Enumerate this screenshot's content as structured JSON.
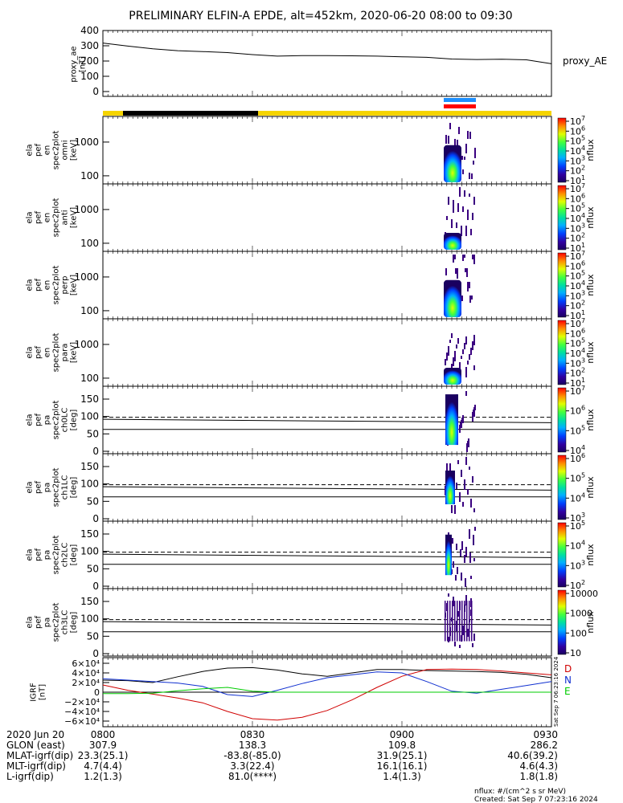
{
  "title": "PRELIMINARY ELFIN-A EPDE, alt=452km, 2020-06-20 08:00 to 09:30",
  "colors": {
    "bar_yellow": "#f5d400",
    "bar_black": "#000000",
    "marker_blue": "#1e90ff",
    "marker_red": "#ff0000",
    "field_black": "#000000",
    "field_red": "#d00000",
    "field_blue": "#1030d0",
    "field_green": "#00cc00"
  },
  "chart_data": [
    {
      "type": "line",
      "panel": "proxy_ae",
      "ylabel": "proxy_ae\n[nT]",
      "legend": "proxy_AE",
      "ylim": [
        0,
        400
      ],
      "yticks": [
        "0",
        "100",
        "200",
        "300",
        "400"
      ],
      "x_minutes": [
        0,
        5,
        10,
        15,
        20,
        25,
        30,
        35,
        40,
        45,
        50,
        55,
        60,
        65,
        70,
        75,
        80,
        85,
        90
      ],
      "values": [
        318,
        298,
        280,
        268,
        262,
        255,
        242,
        232,
        235,
        236,
        234,
        232,
        228,
        224,
        213,
        210,
        212,
        208,
        182
      ]
    },
    {
      "type": "heatmap",
      "panel": "spec_omni",
      "ylabel": "ela\npef\nen\nspec2plot\nomni\n[keV]",
      "yticks": [
        "100",
        "1000"
      ],
      "colorbar_label": "nflux",
      "colorbar_ticks": [
        "101",
        "102",
        "103",
        "104",
        "105",
        "106",
        "107"
      ]
    },
    {
      "type": "heatmap",
      "panel": "spec_anti",
      "ylabel": "ela\npef\nen\nspec2plot\nanti\n[keV]",
      "yticks": [
        "100",
        "1000"
      ],
      "colorbar_label": "nflux",
      "colorbar_ticks": [
        "101",
        "102",
        "103",
        "104",
        "105",
        "106",
        "107"
      ]
    },
    {
      "type": "heatmap",
      "panel": "spec_perp",
      "ylabel": "ela\npef\nen\nspec2plot\nperp\n[keV]",
      "yticks": [
        "100",
        "1000"
      ],
      "colorbar_label": "nflux",
      "colorbar_ticks": [
        "101",
        "102",
        "103",
        "104",
        "105",
        "106",
        "107"
      ]
    },
    {
      "type": "heatmap",
      "panel": "spec_para",
      "ylabel": "ela\npef\nen\nspec2plot\npara\n[keV]",
      "yticks": [
        "100",
        "1000"
      ],
      "colorbar_label": "nflux",
      "colorbar_ticks": [
        "101",
        "102",
        "103",
        "104",
        "105",
        "106",
        "107"
      ]
    },
    {
      "type": "heatmap",
      "panel": "pa_ch0",
      "ylabel": "ela\npef\npa\nspec2plot\nch0LC\n[deg]",
      "yticks": [
        "0",
        "50",
        "100",
        "150"
      ],
      "colorbar_label": "nflux",
      "colorbar_ticks": [
        "104",
        "105",
        "106",
        "107"
      ]
    },
    {
      "type": "heatmap",
      "panel": "pa_ch1",
      "ylabel": "ela\npef\npa\nspec2plot\nch1LC\n[deg]",
      "yticks": [
        "0",
        "50",
        "100",
        "150"
      ],
      "colorbar_label": "nflux",
      "colorbar_ticks": [
        "103",
        "104",
        "105",
        "106"
      ]
    },
    {
      "type": "heatmap",
      "panel": "pa_ch2",
      "ylabel": "ela\npef\npa\nspec2plot\nch2LC\n[deg]",
      "yticks": [
        "0",
        "50",
        "100",
        "150"
      ],
      "colorbar_label": "nflux",
      "colorbar_ticks": [
        "102",
        "103",
        "104",
        "105"
      ]
    },
    {
      "type": "heatmap",
      "panel": "pa_ch3",
      "ylabel": "ela\npef\npa\nspec2plot\nch3LC\n[deg]",
      "yticks": [
        "0",
        "50",
        "100",
        "150"
      ],
      "colorbar_label": "nflux",
      "colorbar_ticks": [
        "10",
        "100",
        "1000",
        "10000"
      ]
    },
    {
      "type": "line",
      "panel": "igrf",
      "ylabel": "IGRF\n[nT]",
      "yticks": [
        "−6×10⁴",
        "−4×10⁴",
        "−2×10⁴",
        "0",
        "2×10⁴",
        "4×10⁴",
        "6×10⁴"
      ],
      "ylim": [
        -60000,
        60000
      ],
      "legend": [
        "D",
        "N",
        "E"
      ],
      "series": [
        {
          "label": "black",
          "values": [
            25000,
            24000,
            20000,
            32000,
            43000,
            50000,
            51000,
            46000,
            38000,
            33000,
            40000,
            47000,
            47000,
            45000,
            44000,
            43000,
            41000,
            37000,
            30000
          ]
        },
        {
          "label": "red",
          "values": [
            15000,
            4000,
            -4000,
            -12000,
            -22000,
            -40000,
            -55000,
            -58000,
            -52000,
            -38000,
            -16000,
            10000,
            33000,
            47000,
            48000,
            47000,
            44000,
            40000,
            36000
          ]
        },
        {
          "label": "blue",
          "values": [
            28000,
            25000,
            22000,
            19000,
            12000,
            -5000,
            -9000,
            4000,
            18000,
            30000,
            36000,
            42000,
            40000,
            22000,
            2000,
            -2000,
            6000,
            14000,
            22000
          ]
        },
        {
          "label": "green",
          "values": [
            -3000,
            -3000,
            -2000,
            3000,
            7000,
            10000,
            2000,
            0,
            0,
            0,
            0,
            0,
            0,
            0,
            0,
            0,
            0,
            0,
            0
          ]
        }
      ],
      "side_text": "Sat Sep  7 06:23:16 2024"
    }
  ],
  "table": {
    "row_labels": [
      "2020 Jun 20",
      "GLON (east)",
      "MLAT-igrf(dip)",
      "MLT-igrf(dip)",
      "L-igrf(dip)"
    ],
    "columns": [
      [
        "0800",
        "307.9",
        "23.3(25.1)",
        "4.7(4.4)",
        "1.2(1.3)"
      ],
      [
        "0830",
        "138.3",
        "-83.8(-85.0)",
        "3.3(22.4)",
        "81.0(****)"
      ],
      [
        "0900",
        "109.8",
        "31.9(25.1)",
        "16.1(16.1)",
        "1.4(1.3)"
      ],
      [
        "0930",
        "286.2",
        "40.6(39.2)",
        "4.6(4.3)",
        "1.8(1.8)"
      ]
    ]
  },
  "footnote": "nflux: #/(cm^2 s sr MeV)",
  "created": "Created: Sat Sep  7 07:23:16 2024"
}
